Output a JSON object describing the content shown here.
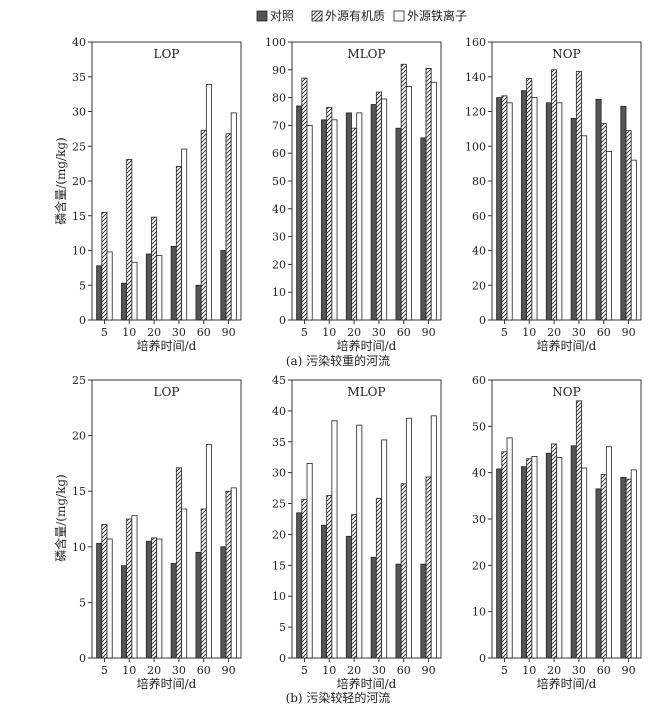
{
  "legend": [
    "对照",
    "外源有机质",
    "外源铁离子"
  ],
  "xlabel": "培养时间/d",
  "ylabel": "磷含量/(mg/kg)",
  "categories": [
    "5",
    "10",
    "20",
    "30",
    "60",
    "90"
  ],
  "row_captions": [
    "(a) 污染较重的河流",
    "(b) 污染较轻的河流"
  ],
  "colors": {
    "control": "#555555",
    "organic": "#ffffff",
    "iron": "#ffffff",
    "stroke": "#222222"
  },
  "chart_data": [
    {
      "type": "bar",
      "row": 0,
      "title": "LOP",
      "categories": [
        "5",
        "10",
        "20",
        "30",
        "60",
        "90"
      ],
      "ylim": [
        0,
        40
      ],
      "yticks": [
        0,
        5,
        10,
        15,
        20,
        25,
        30,
        35,
        40
      ],
      "series": [
        {
          "name": "对照",
          "values": [
            7.8,
            5.3,
            9.5,
            10.6,
            5.0,
            10.0
          ]
        },
        {
          "name": "外源有机质",
          "values": [
            15.5,
            23.1,
            14.8,
            22.1,
            27.3,
            26.8
          ]
        },
        {
          "name": "外源铁离子",
          "values": [
            9.8,
            8.3,
            9.3,
            24.6,
            33.9,
            29.8
          ]
        }
      ]
    },
    {
      "type": "bar",
      "row": 0,
      "title": "MLOP",
      "categories": [
        "5",
        "10",
        "20",
        "30",
        "60",
        "90"
      ],
      "ylim": [
        0,
        100
      ],
      "yticks": [
        0,
        10,
        20,
        30,
        40,
        50,
        60,
        70,
        80,
        90,
        100
      ],
      "series": [
        {
          "name": "对照",
          "values": [
            77,
            72,
            74.5,
            77.5,
            69,
            65.5
          ]
        },
        {
          "name": "外源有机质",
          "values": [
            87,
            76.5,
            69,
            82,
            92,
            90.5
          ]
        },
        {
          "name": "外源铁离子",
          "values": [
            70,
            72,
            74.5,
            79.5,
            84,
            85.5
          ]
        }
      ]
    },
    {
      "type": "bar",
      "row": 0,
      "title": "NOP",
      "categories": [
        "5",
        "10",
        "20",
        "30",
        "60",
        "90"
      ],
      "ylim": [
        0,
        160
      ],
      "yticks": [
        0,
        20,
        40,
        60,
        80,
        100,
        120,
        140,
        160
      ],
      "series": [
        {
          "name": "对照",
          "values": [
            128,
            132,
            125,
            116,
            127,
            123
          ]
        },
        {
          "name": "外源有机质",
          "values": [
            129,
            139,
            144,
            143,
            113,
            109
          ]
        },
        {
          "name": "外源铁离子",
          "values": [
            125,
            128,
            125,
            106,
            97,
            92
          ]
        }
      ]
    },
    {
      "type": "bar",
      "row": 1,
      "title": "LOP",
      "categories": [
        "5",
        "10",
        "20",
        "30",
        "60",
        "90"
      ],
      "ylim": [
        0,
        25
      ],
      "yticks": [
        0,
        5,
        10,
        15,
        20,
        25
      ],
      "series": [
        {
          "name": "对照",
          "values": [
            10.3,
            8.3,
            10.5,
            8.5,
            9.5,
            10.0
          ]
        },
        {
          "name": "外源有机质",
          "values": [
            12.0,
            12.5,
            10.8,
            17.1,
            13.4,
            15.0
          ]
        },
        {
          "name": "外源铁离子",
          "values": [
            10.7,
            12.8,
            10.7,
            13.4,
            19.2,
            15.3
          ]
        }
      ]
    },
    {
      "type": "bar",
      "row": 1,
      "title": "MLOP",
      "categories": [
        "5",
        "10",
        "20",
        "30",
        "60",
        "90"
      ],
      "ylim": [
        0,
        45
      ],
      "yticks": [
        0,
        5,
        10,
        15,
        20,
        25,
        30,
        35,
        40,
        45
      ],
      "series": [
        {
          "name": "对照",
          "values": [
            23.5,
            21.5,
            19.7,
            16.3,
            15.2,
            15.2
          ]
        },
        {
          "name": "外源有机质",
          "values": [
            25.7,
            26.3,
            23.2,
            25.8,
            28.2,
            29.3
          ]
        },
        {
          "name": "外源铁离子",
          "values": [
            31.5,
            38.4,
            37.7,
            35.3,
            38.8,
            39.2
          ]
        }
      ]
    },
    {
      "type": "bar",
      "row": 1,
      "title": "NOP",
      "categories": [
        "5",
        "10",
        "20",
        "30",
        "60",
        "90"
      ],
      "ylim": [
        0,
        60
      ],
      "yticks": [
        0,
        10,
        20,
        30,
        40,
        50,
        60
      ],
      "series": [
        {
          "name": "对照",
          "values": [
            40.8,
            41.3,
            44.2,
            45.8,
            36.5,
            39.0
          ]
        },
        {
          "name": "外源有机质",
          "values": [
            44.5,
            43.0,
            46.2,
            55.5,
            39.6,
            38.6
          ]
        },
        {
          "name": "外源铁离子",
          "values": [
            47.5,
            43.5,
            43.3,
            41.0,
            45.6,
            40.6
          ]
        }
      ]
    }
  ]
}
